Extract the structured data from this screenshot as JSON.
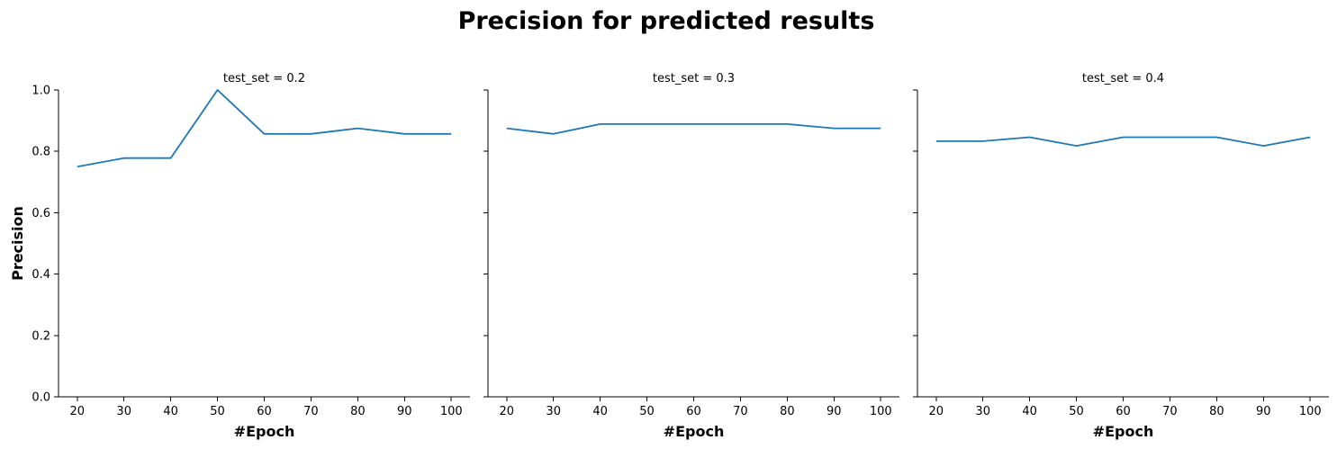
{
  "title": "Precision for predicted results",
  "chart_data": {
    "type": "line",
    "title": "Precision for predicted results",
    "xlabel": "#Epoch",
    "ylabel": "Precision",
    "x": [
      20,
      30,
      40,
      50,
      60,
      70,
      80,
      90,
      100
    ],
    "xticks": [
      20,
      30,
      40,
      50,
      60,
      70,
      80,
      90,
      100
    ],
    "xlim": [
      16,
      104
    ],
    "ylim": [
      0.0,
      1.0
    ],
    "yticks": [
      0.0,
      0.2,
      0.4,
      0.6,
      0.8,
      1.0
    ],
    "ytick_labels": [
      "0.0",
      "0.2",
      "0.4",
      "0.6",
      "0.8",
      "1.0"
    ],
    "grid": false,
    "line_color": "#1f77b4",
    "panels": [
      {
        "title": "test_set = 0.2",
        "values": [
          0.75,
          0.778,
          0.778,
          1.0,
          0.857,
          0.857,
          0.875,
          0.857,
          0.857
        ]
      },
      {
        "title": "test_set = 0.3",
        "values": [
          0.875,
          0.857,
          0.889,
          0.889,
          0.889,
          0.889,
          0.889,
          0.875,
          0.875
        ]
      },
      {
        "title": "test_set = 0.4",
        "values": [
          0.833,
          0.833,
          0.846,
          0.818,
          0.846,
          0.846,
          0.846,
          0.818,
          0.846
        ]
      }
    ]
  }
}
